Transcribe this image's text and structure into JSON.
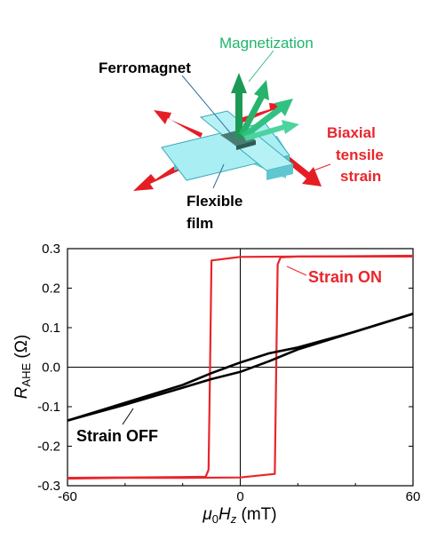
{
  "schematic": {
    "magnetization_label": "Magnetization",
    "ferromagnet_label": "Ferromagnet",
    "strain_label_lines": [
      "Biaxial",
      "tensile",
      "strain"
    ],
    "film_label_lines": [
      "Flexible",
      "film"
    ],
    "colors": {
      "arm": "#a8eef2",
      "arm_edge": "#3aaab8",
      "arrow_red": "#e51e25",
      "arrow_green": "#23b26d",
      "magnet": "#2e5c52"
    }
  },
  "chart_data": {
    "type": "line",
    "title": "",
    "xlabel": {
      "mu": "μ",
      "mu_sub": "0",
      "H": "H",
      "H_sub": "z",
      "unit": " (mT)"
    },
    "ylabel": {
      "R": "R",
      "R_sub": "AHE",
      "unit": " (Ω)"
    },
    "xlim": [
      -60,
      60
    ],
    "ylim": [
      -0.3,
      0.3
    ],
    "xticks": [
      -60,
      0,
      60
    ],
    "xtick_labels": [
      "-60",
      "0",
      "60"
    ],
    "yticks": [
      0.3,
      0.2,
      0.1,
      0.0,
      -0.1,
      -0.2,
      -0.3
    ],
    "ytick_labels": [
      "0.3",
      "0.2",
      "0.1",
      "0.0",
      "-0.1",
      "-0.2",
      "-0.3"
    ],
    "grid": false,
    "zero_lines": true,
    "series": [
      {
        "name": "Strain ON",
        "color": "#e8262c",
        "branches": [
          {
            "x": [
              -60,
              -40,
              -20,
              -12,
              -11,
              -10.5,
              -10,
              0,
              20,
              40,
              60
            ],
            "y": [
              -0.28,
              -0.279,
              -0.278,
              -0.277,
              -0.26,
              0.0,
              0.27,
              0.279,
              0.28,
              0.28,
              0.28
            ]
          },
          {
            "x": [
              60,
              40,
              20,
              14,
              13,
              12.5,
              12,
              0,
              -20,
              -40,
              -60
            ],
            "y": [
              0.282,
              0.281,
              0.28,
              0.278,
              0.26,
              0.0,
              -0.27,
              -0.279,
              -0.28,
              -0.28,
              -0.282
            ]
          }
        ]
      },
      {
        "name": "Strain OFF",
        "color": "#000000",
        "branches": [
          {
            "x": [
              -60,
              -40,
              -20,
              -10,
              0,
              10,
              20,
              40,
              60
            ],
            "y": [
              -0.135,
              -0.095,
              -0.052,
              -0.03,
              -0.012,
              0.015,
              0.045,
              0.09,
              0.135
            ]
          },
          {
            "x": [
              60,
              40,
              20,
              10,
              0,
              -10,
              -20,
              -40,
              -60
            ],
            "y": [
              0.135,
              0.09,
              0.05,
              0.035,
              0.012,
              -0.015,
              -0.045,
              -0.09,
              -0.135
            ]
          }
        ]
      }
    ]
  }
}
